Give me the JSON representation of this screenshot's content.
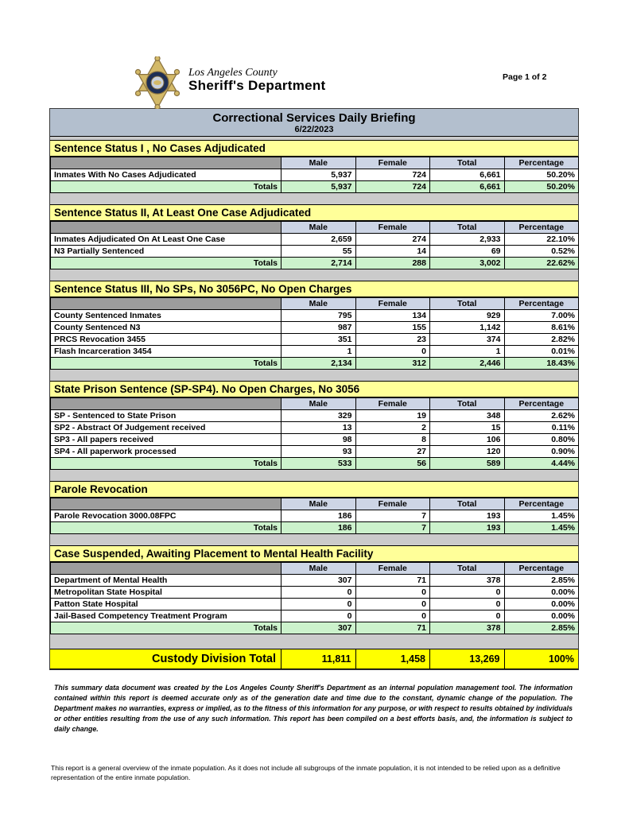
{
  "page": {
    "page_indicator": "Page 1 of 2"
  },
  "header": {
    "agency_top": "Los Angeles County",
    "agency_bottom": "Sheriff's Department",
    "badge_icon": "sheriffs-star-badge"
  },
  "title_bar": {
    "title": "Correctional Services Daily Briefing",
    "date": "6/22/2023"
  },
  "table": {
    "columns": [
      "Male",
      "Female",
      "Total",
      "Percentage"
    ],
    "totals_label": "Totals",
    "sections": [
      {
        "title": "Sentence Status I , No Cases Adjudicated",
        "rows": [
          {
            "label": "Inmates With No Cases Adjudicated",
            "values": [
              "5,937",
              "724",
              "6,661",
              "50.20%"
            ]
          }
        ],
        "totals": [
          "5,937",
          "724",
          "6,661",
          "50.20%"
        ]
      },
      {
        "title": "Sentence Status II, At Least One Case Adjudicated",
        "rows": [
          {
            "label": "Inmates Adjudicated On At Least One Case",
            "values": [
              "2,659",
              "274",
              "2,933",
              "22.10%"
            ]
          },
          {
            "label": "N3 Partially Sentenced",
            "values": [
              "55",
              "14",
              "69",
              "0.52%"
            ]
          }
        ],
        "totals": [
          "2,714",
          "288",
          "3,002",
          "22.62%"
        ]
      },
      {
        "title": "Sentence Status III, No SPs, No 3056PC, No Open Charges",
        "rows": [
          {
            "label": "County Sentenced Inmates",
            "values": [
              "795",
              "134",
              "929",
              "7.00%"
            ]
          },
          {
            "label": "County Sentenced N3",
            "values": [
              "987",
              "155",
              "1,142",
              "8.61%"
            ]
          },
          {
            "label": "PRCS Revocation 3455",
            "values": [
              "351",
              "23",
              "374",
              "2.82%"
            ]
          },
          {
            "label": "Flash Incarceration 3454",
            "values": [
              "1",
              "0",
              "1",
              "0.01%"
            ]
          }
        ],
        "totals": [
          "2,134",
          "312",
          "2,446",
          "18.43%"
        ]
      },
      {
        "title": "State Prison Sentence (SP-SP4). No Open Charges, No 3056",
        "rows": [
          {
            "label": "SP - Sentenced to State Prison",
            "values": [
              "329",
              "19",
              "348",
              "2.62%"
            ]
          },
          {
            "label": "SP2 - Abstract Of Judgement received",
            "values": [
              "13",
              "2",
              "15",
              "0.11%"
            ]
          },
          {
            "label": "SP3 - All papers received",
            "values": [
              "98",
              "8",
              "106",
              "0.80%"
            ]
          },
          {
            "label": "SP4 - All paperwork processed",
            "values": [
              "93",
              "27",
              "120",
              "0.90%"
            ]
          }
        ],
        "totals": [
          "533",
          "56",
          "589",
          "4.44%"
        ]
      },
      {
        "title": "Parole Revocation",
        "rows": [
          {
            "label": "Parole Revocation 3000.08FPC",
            "values": [
              "186",
              "7",
              "193",
              "1.45%"
            ]
          }
        ],
        "totals": [
          "186",
          "7",
          "193",
          "1.45%"
        ]
      },
      {
        "title": "Case Suspended, Awaiting Placement to Mental Health Facility",
        "rows": [
          {
            "label": "Department of Mental Health",
            "values": [
              "307",
              "71",
              "378",
              "2.85%"
            ]
          },
          {
            "label": "Metropolitan State Hospital",
            "values": [
              "0",
              "0",
              "0",
              "0.00%"
            ]
          },
          {
            "label": "Patton State Hospital",
            "values": [
              "0",
              "0",
              "0",
              "0.00%"
            ]
          },
          {
            "label": "Jail-Based Competency Treatment Program",
            "values": [
              "0",
              "0",
              "0",
              "0.00%"
            ]
          }
        ],
        "totals": [
          "307",
          "71",
          "378",
          "2.85%"
        ]
      }
    ],
    "grand_total": {
      "label": "Custody Division Total",
      "values": [
        "11,811",
        "1,458",
        "13,269",
        "100%"
      ]
    }
  },
  "footnotes": {
    "disclaimer": "This summary data document was created by the Los Angeles County Sheriff's Department as an internal population management tool.  The information contained within this report is deemed accurate only as of the generation date and time due to the constant, dynamic change of the population.  The Department makes no warranties, express or implied, as to the fitness of this information for any purpose, or with respect to results obtained by individuals or other entities resulting from the use of any such information.  This report has been compiled on a best efforts basis, and, the information is subject to daily change.",
    "overview_note": "This report is a general overview of the inmate population.  As it does not include all subgroups of the inmate population, it is not intended to be relied upon as a definitive representation of the entire inmate population."
  },
  "colors": {
    "title_bar": "#b3bfce",
    "section_header": "#ffff99",
    "column_header": "#cdd5e5",
    "corner_cell": "#9d9d9d",
    "totals_row": "#ccf2cc",
    "grand_total_row": "#ffff00",
    "content_background": "#cbcbcb",
    "badge_gold": "#d3b968",
    "badge_navy": "#1e2f55"
  }
}
